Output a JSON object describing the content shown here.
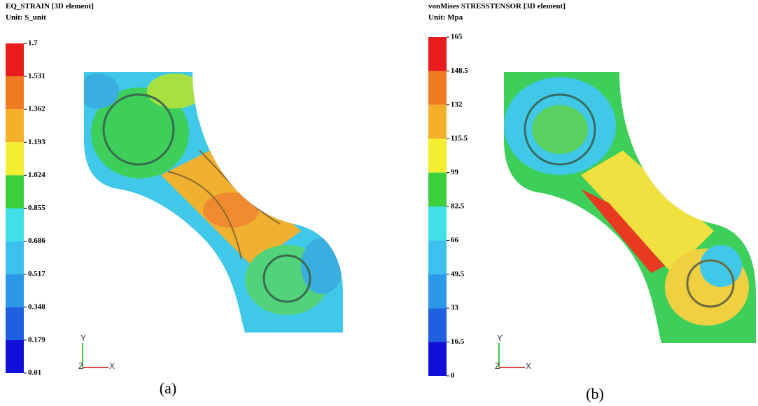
{
  "panels": [
    {
      "title": "EQ_STRAIN [3D element]",
      "unit": "Unit: S_unit",
      "ticks": [
        "1.7",
        "1.531",
        "1.362",
        "1.193",
        "1.024",
        "0.855",
        "0.686",
        "0.517",
        "0.348",
        "0.179",
        "0.01"
      ],
      "axes": {
        "x": "X",
        "y": "Y",
        "z": "Z"
      },
      "caption": "(a)"
    },
    {
      "title": "vonMises STRESSTENSOR [3D element]",
      "unit": "Unit: Mpa",
      "ticks": [
        "165",
        "148.5",
        "132",
        "115.5",
        "99",
        "82.5",
        "66",
        "49.5",
        "33",
        "16.5",
        "0"
      ],
      "axes": {
        "x": "X",
        "y": "Y",
        "z": "Z"
      },
      "caption": "(b)"
    }
  ]
}
